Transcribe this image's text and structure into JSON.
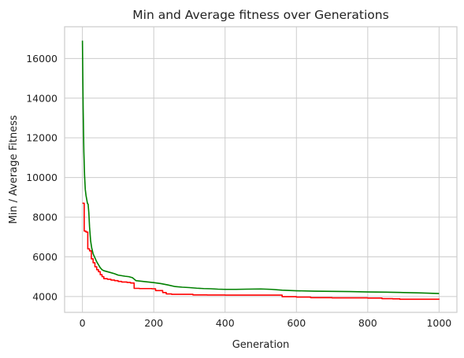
{
  "chart_data": {
    "type": "line",
    "title": "Min and Average fitness over Generations",
    "xlabel": "Generation",
    "ylabel": "Min / Average Fitness",
    "xlim": [
      -50,
      1050
    ],
    "ylim": [
      3200,
      17600
    ],
    "xticks": [
      0,
      200,
      400,
      600,
      800,
      1000
    ],
    "yticks": [
      4000,
      6000,
      8000,
      10000,
      12000,
      14000,
      16000
    ],
    "grid": true,
    "legend": "none",
    "series": [
      {
        "color": "#ff0000",
        "step": true,
        "x": [
          0,
          5,
          10,
          15,
          20,
          25,
          30,
          35,
          40,
          45,
          50,
          55,
          60,
          70,
          80,
          90,
          100,
          110,
          125,
          135,
          145,
          160,
          195,
          205,
          225,
          235,
          250,
          310,
          350,
          400,
          450,
          500,
          555,
          560,
          600,
          640,
          700,
          800,
          840,
          870,
          890,
          1000
        ],
        "y": [
          8700,
          7300,
          7250,
          6400,
          6300,
          5900,
          5700,
          5500,
          5350,
          5250,
          5100,
          5000,
          4900,
          4870,
          4830,
          4800,
          4760,
          4730,
          4710,
          4680,
          4410,
          4400,
          4390,
          4300,
          4200,
          4130,
          4110,
          4080,
          4075,
          4070,
          4070,
          4070,
          4070,
          3990,
          3970,
          3940,
          3930,
          3920,
          3890,
          3880,
          3860,
          3850
        ]
      },
      {
        "color": "#008000",
        "step": false,
        "x": [
          0,
          2,
          4,
          6,
          8,
          10,
          12,
          14,
          16,
          18,
          20,
          23,
          26,
          30,
          35,
          40,
          45,
          50,
          55,
          60,
          70,
          80,
          90,
          100,
          110,
          120,
          130,
          140,
          150,
          160,
          180,
          200,
          220,
          240,
          260,
          280,
          300,
          320,
          340,
          360,
          380,
          400,
          430,
          460,
          500,
          530,
          560,
          600,
          650,
          700,
          750,
          800,
          850,
          900,
          950,
          1000
        ],
        "y": [
          16900,
          13500,
          11300,
          10100,
          9400,
          9100,
          8900,
          8700,
          8650,
          8200,
          7500,
          6800,
          6450,
          6150,
          5950,
          5750,
          5600,
          5450,
          5350,
          5300,
          5250,
          5200,
          5150,
          5080,
          5050,
          5020,
          5000,
          4950,
          4800,
          4780,
          4740,
          4700,
          4650,
          4580,
          4500,
          4470,
          4450,
          4420,
          4400,
          4390,
          4370,
          4360,
          4360,
          4370,
          4380,
          4360,
          4320,
          4290,
          4270,
          4260,
          4250,
          4230,
          4220,
          4200,
          4180,
          4150
        ]
      }
    ]
  }
}
